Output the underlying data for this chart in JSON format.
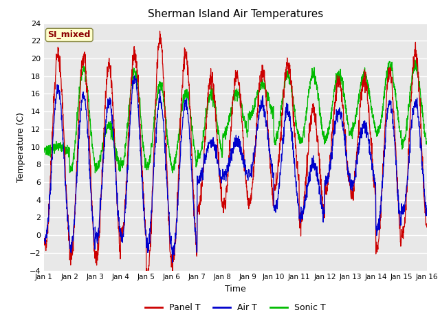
{
  "title": "Sherman Island Air Temperatures",
  "xlabel": "Time",
  "ylabel": "Temperature (C)",
  "ylim": [
    -4,
    24
  ],
  "yticks": [
    -4,
    -2,
    0,
    2,
    4,
    6,
    8,
    10,
    12,
    14,
    16,
    18,
    20,
    22,
    24
  ],
  "xlim": [
    0,
    15
  ],
  "xtick_labels": [
    "Jan 1",
    "Jan 2",
    "Jan 3",
    "Jan 4",
    "Jan 5",
    "Jan 6",
    "Jan 7",
    "Jan 8",
    "Jan 9",
    "Jan 10",
    "Jan 11",
    "Jan 12",
    "Jan 13",
    "Jan 14",
    "Jan 15",
    "Jan 16"
  ],
  "panel_t_color": "#cc0000",
  "air_t_color": "#0000cc",
  "sonic_t_color": "#00bb00",
  "legend_labels": [
    "Panel T",
    "Air T",
    "Sonic T"
  ],
  "annotation_text": "SI_mixed",
  "annotation_color": "#8b0000",
  "annotation_bg": "#ffffcc",
  "plot_bg": "#e8e8e8",
  "fig_bg": "#ffffff",
  "n_points": 2000,
  "days": 15
}
